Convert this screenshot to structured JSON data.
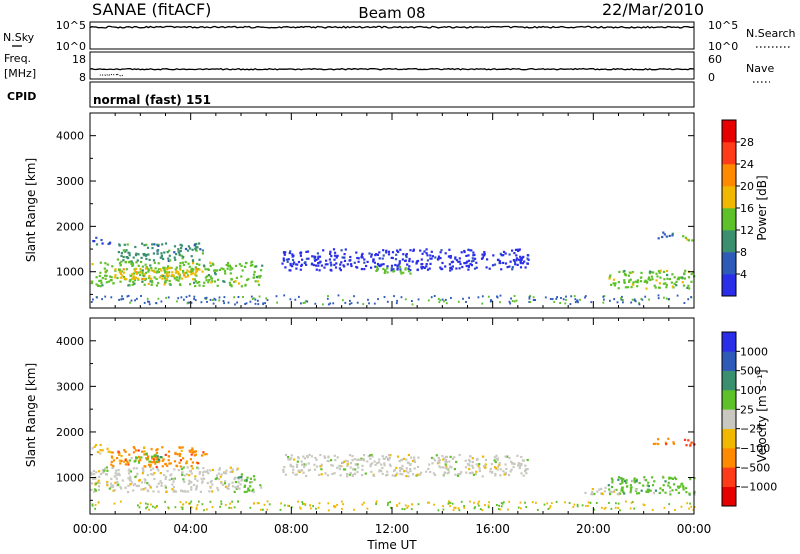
{
  "header": {
    "station": "SANAE (fitACF)",
    "beam": "Beam 08",
    "date": "22/Mar/2010"
  },
  "top_panels": {
    "nsky": {
      "label": "N.Sky",
      "ticks": [
        "10^5",
        "10^0"
      ],
      "right_label": "N.Search",
      "right_ticks": [
        "10^5",
        "10^0"
      ],
      "level": 0.92
    },
    "freq": {
      "label_line1": "Freq.",
      "label_line2": "[MHz]",
      "ticks": [
        "18",
        "8"
      ],
      "right_label": "Nave",
      "right_ticks": [
        "60",
        "0"
      ],
      "level_mhz": 12.0
    },
    "cpid": {
      "label": "CPID",
      "text": "normal (fast) 151"
    }
  },
  "chart_data": [
    {
      "type": "heatmap",
      "name": "power",
      "ylabel": "Slant Range [km]",
      "y_ticks": [
        "1000",
        "2000",
        "3000",
        "4000"
      ],
      "ylim": [
        200,
        4500
      ],
      "xlim": [
        0,
        24
      ],
      "colorbar_label": "Power [dB]",
      "colorbar_ticks": [
        "4",
        "8",
        "12",
        "16",
        "20",
        "24",
        "28"
      ],
      "colorbar_colors": [
        "#2a2ee8",
        "#2f5bb8",
        "#3a8f6e",
        "#5fc12a",
        "#f0b800",
        "#ff8a00",
        "#ff3b1a",
        "#e60000"
      ],
      "regions": [
        {
          "t0": 0.0,
          "t1": 6.8,
          "r0": 700,
          "r1": 1250,
          "level": 3
        },
        {
          "t0": 0.9,
          "t1": 4.6,
          "r0": 860,
          "r1": 1100,
          "level": 4
        },
        {
          "t0": 1.0,
          "t1": 4.5,
          "r0": 1250,
          "r1": 1650,
          "level": 2
        },
        {
          "t0": 0.0,
          "t1": 0.8,
          "r0": 1600,
          "r1": 1780,
          "level": 1
        },
        {
          "t0": 7.6,
          "t1": 17.4,
          "r0": 1050,
          "r1": 1520,
          "level": 0
        },
        {
          "t0": 11.3,
          "t1": 12.7,
          "r0": 980,
          "r1": 1150,
          "level": 3
        },
        {
          "t0": 20.5,
          "t1": 24.0,
          "r0": 650,
          "r1": 1050,
          "level": 3
        },
        {
          "t0": 22.3,
          "t1": 23.2,
          "r0": 1750,
          "r1": 1900,
          "level": 1
        },
        {
          "t0": 23.5,
          "t1": 24.0,
          "r0": 1700,
          "r1": 1850,
          "level": 3
        }
      ]
    },
    {
      "type": "heatmap",
      "name": "velocity",
      "ylabel": "Slant Range [km]",
      "y_ticks": [
        "1000",
        "2000",
        "3000",
        "4000"
      ],
      "ylim": [
        200,
        4500
      ],
      "xlim": [
        0,
        24
      ],
      "xlabel": "Time UT",
      "x_ticks": [
        "00:00",
        "04:00",
        "08:00",
        "12:00",
        "16:00",
        "20:00",
        "00:00"
      ],
      "colorbar_label": "Velocity [m s⁻¹]",
      "colorbar_ticks": [
        "1000",
        "500",
        "100",
        "25",
        "−25",
        "−100",
        "−500",
        "−1000"
      ],
      "colorbar_colors": [
        "#2a2ee8",
        "#2f5bb8",
        "#3a8f6e",
        "#5fc12a",
        "#c8c8c0",
        "#f0b800",
        "#ff8a00",
        "#ff3b1a",
        "#e60000"
      ],
      "regions": [
        {
          "t0": 0.0,
          "t1": 6.0,
          "r0": 700,
          "r1": 1250,
          "level": 4
        },
        {
          "t0": 5.7,
          "t1": 6.8,
          "r0": 700,
          "r1": 1100,
          "level": 3
        },
        {
          "t0": 0.0,
          "t1": 0.8,
          "r0": 1550,
          "r1": 1750,
          "level": 5
        },
        {
          "t0": 0.8,
          "t1": 4.6,
          "r0": 1250,
          "r1": 1700,
          "level": 6
        },
        {
          "t0": 1.5,
          "t1": 3.0,
          "r0": 1350,
          "r1": 1550,
          "level": 3
        },
        {
          "t0": 7.6,
          "t1": 17.4,
          "r0": 1050,
          "r1": 1520,
          "level": 4
        },
        {
          "t0": 20.5,
          "t1": 24.0,
          "r0": 650,
          "r1": 1050,
          "level": 3
        },
        {
          "t0": 19.5,
          "t1": 21.0,
          "r0": 650,
          "r1": 800,
          "level": 4
        },
        {
          "t0": 22.3,
          "t1": 23.2,
          "r0": 1750,
          "r1": 1900,
          "level": 6
        },
        {
          "t0": 23.5,
          "t1": 24.0,
          "r0": 1700,
          "r1": 1850,
          "level": 7
        }
      ]
    }
  ]
}
